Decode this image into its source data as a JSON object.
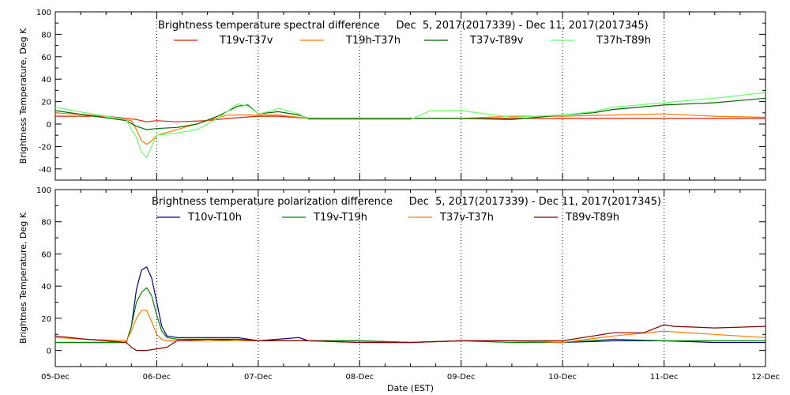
{
  "chart_data": [
    {
      "type": "line",
      "title": "Brightness temperature spectral difference     Dec  5, 2017(2017339) - Dec 11, 2017(2017345)",
      "ylabel": "Brightness Temperature, Deg K",
      "xlabel": "",
      "xlim": [
        0,
        7
      ],
      "ylim": [
        -50,
        100
      ],
      "yticks": [
        "-40",
        "-20",
        "0",
        "20",
        "40",
        "60",
        "80",
        "100"
      ],
      "yticks_values": [
        -40,
        -20,
        0,
        20,
        40,
        60,
        80,
        100
      ],
      "grid": "vertical dotted lines at day boundaries",
      "legend": "top",
      "series": [
        {
          "name": "T19v-T37v",
          "color": "#dd2200",
          "x": [
            0,
            0.5,
            0.8,
            0.9,
            1.0,
            1.2,
            1.5,
            1.7,
            2.0,
            2.2,
            2.5,
            3.0,
            3.5,
            4.0,
            4.5,
            5.0,
            5.5,
            6.0,
            6.5,
            7.0
          ],
          "y": [
            7,
            7,
            4,
            2,
            3,
            2,
            3,
            5,
            7,
            7,
            5,
            5,
            5,
            5,
            5,
            5,
            5,
            5,
            5,
            5
          ]
        },
        {
          "name": "T19h-T37h",
          "color": "#ff7700",
          "x": [
            0,
            0.5,
            0.75,
            0.8,
            0.85,
            0.9,
            0.95,
            1.0,
            1.2,
            1.5,
            1.7,
            2.0,
            2.2,
            2.5,
            3.0,
            3.5,
            4.0,
            4.5,
            5.0,
            5.5,
            6.0,
            6.5,
            7.0
          ],
          "y": [
            10,
            7,
            3,
            -5,
            -15,
            -18,
            -15,
            -10,
            -5,
            3,
            8,
            8,
            8,
            5,
            5,
            5,
            5,
            7,
            7,
            8,
            9,
            7,
            6
          ]
        },
        {
          "name": "T37v-T89v",
          "color": "#006600",
          "x": [
            0,
            0.3,
            0.7,
            0.8,
            0.9,
            1.0,
            1.2,
            1.4,
            1.6,
            1.8,
            1.9,
            2.0,
            2.2,
            2.4,
            2.5,
            3.0,
            3.5,
            4.0,
            4.5,
            5.0,
            5.3,
            5.5,
            6.0,
            6.5,
            7.0
          ],
          "y": [
            12,
            8,
            3,
            -2,
            -5,
            -4,
            -3,
            0,
            7,
            16,
            17,
            9,
            11,
            8,
            5,
            5,
            5,
            5,
            4,
            8,
            10,
            13,
            17,
            19,
            23
          ]
        },
        {
          "name": "T37h-T89h",
          "color": "#66ff66",
          "x": [
            0,
            0.3,
            0.7,
            0.75,
            0.8,
            0.85,
            0.9,
            0.95,
            1.0,
            1.2,
            1.4,
            1.6,
            1.8,
            1.9,
            2.0,
            2.1,
            2.2,
            2.4,
            2.5,
            3.0,
            3.5,
            3.7,
            4.0,
            4.5,
            5.0,
            5.3,
            5.5,
            6.0,
            6.5,
            7.0
          ],
          "y": [
            15,
            10,
            4,
            -5,
            -12,
            -25,
            -30,
            -20,
            -10,
            -8,
            -5,
            5,
            18,
            16,
            9,
            11,
            14,
            9,
            4,
            4,
            4,
            12,
            12,
            6,
            8,
            11,
            15,
            19,
            23,
            28
          ]
        }
      ]
    },
    {
      "type": "line",
      "title": "Brightness temperature polarization difference     Dec  5, 2017(2017339) - Dec 11, 2017(2017345)",
      "ylabel": "Brightnes Temperature, Deg K",
      "xlabel": "Date (EST)",
      "xlim": [
        0,
        7
      ],
      "ylim": [
        -10,
        100
      ],
      "yticks": [
        "0",
        "20",
        "40",
        "60",
        "80",
        "100"
      ],
      "yticks_values": [
        0,
        20,
        40,
        60,
        80,
        100
      ],
      "xtick_labels": [
        "05-Dec",
        "06-Dec",
        "07-Dec",
        "08-Dec",
        "09-Dec",
        "10-Dec",
        "11-Dec",
        "12-Dec"
      ],
      "grid": "vertical dotted lines at day boundaries",
      "legend": "top",
      "series": [
        {
          "name": "T10v-T10h",
          "color": "#000088",
          "x": [
            0,
            0.3,
            0.7,
            0.75,
            0.8,
            0.85,
            0.9,
            0.95,
            1.0,
            1.05,
            1.1,
            1.2,
            1.5,
            1.8,
            2.0,
            2.4,
            2.5,
            3.0,
            3.5,
            4.0,
            4.5,
            5.0,
            5.5,
            6.0,
            6.5,
            7.0
          ],
          "y": [
            5,
            5,
            5,
            15,
            38,
            50,
            52,
            45,
            30,
            15,
            9,
            8,
            8,
            8,
            6,
            8,
            6,
            6,
            5,
            6,
            6,
            5,
            6,
            6,
            5,
            5
          ]
        },
        {
          "name": "T19v-T19h",
          "color": "#008800",
          "x": [
            0,
            0.3,
            0.7,
            0.75,
            0.8,
            0.85,
            0.9,
            0.95,
            1.0,
            1.05,
            1.1,
            1.2,
            1.5,
            1.8,
            2.0,
            2.5,
            3.0,
            3.5,
            4.0,
            4.5,
            5.0,
            5.5,
            6.0,
            6.5,
            7.0
          ],
          "y": [
            5,
            5,
            5,
            15,
            30,
            36,
            39,
            34,
            22,
            12,
            8,
            7,
            7,
            6,
            6,
            6,
            6,
            5,
            6,
            5,
            5,
            7,
            6,
            6,
            6
          ]
        },
        {
          "name": "T37v-T37h",
          "color": "#ff7700",
          "x": [
            0,
            0.3,
            0.7,
            0.75,
            0.8,
            0.85,
            0.9,
            0.95,
            1.0,
            1.05,
            1.1,
            1.2,
            1.5,
            2.0,
            2.5,
            3.0,
            3.5,
            4.0,
            4.5,
            5.0,
            5.5,
            6.0,
            6.5,
            7.0
          ],
          "y": [
            8,
            7,
            6,
            12,
            20,
            25,
            25,
            18,
            10,
            7,
            6,
            6,
            6,
            6,
            6,
            5,
            5,
            6,
            6,
            5,
            9,
            12,
            10,
            8
          ]
        },
        {
          "name": "T89v-T89h",
          "color": "#880000",
          "x": [
            0,
            0.3,
            0.7,
            0.75,
            0.8,
            0.9,
            1.0,
            1.1,
            1.2,
            1.5,
            1.8,
            2.0,
            2.5,
            3.0,
            3.5,
            4.0,
            4.5,
            5.0,
            5.3,
            5.5,
            5.8,
            6.0,
            6.1,
            6.5,
            7.0
          ],
          "y": [
            9,
            7,
            5,
            2,
            0,
            0,
            1,
            2,
            6,
            7,
            7,
            6,
            6,
            5,
            5,
            6,
            6,
            6,
            9,
            11,
            11,
            16,
            15,
            14,
            15
          ]
        }
      ]
    }
  ]
}
